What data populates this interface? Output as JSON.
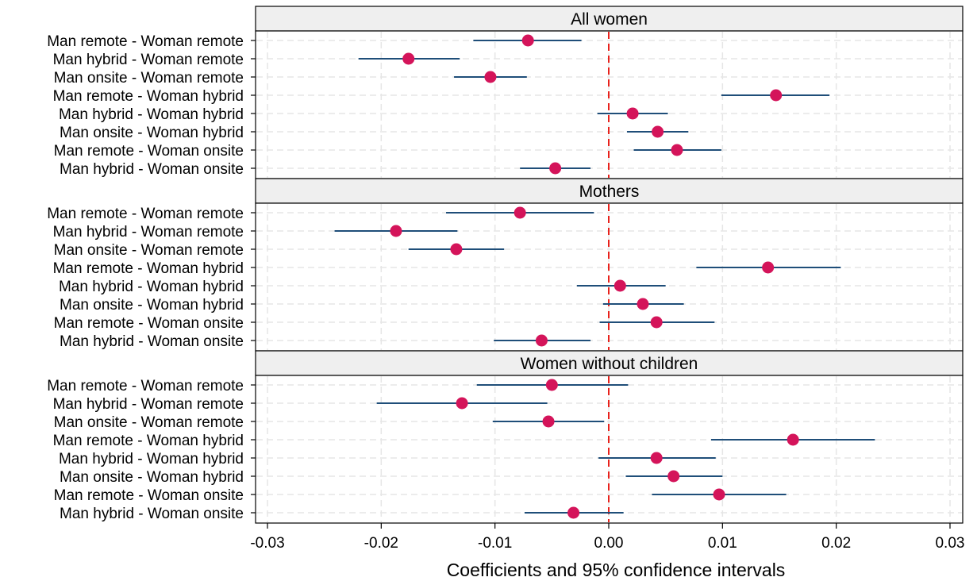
{
  "chart_data": {
    "type": "scatter",
    "subtype": "coefficient plot with 95% confidence intervals, faceted",
    "xlabel": "Coefficients and 95% confidence intervals",
    "xlim": [
      -0.031,
      0.031
    ],
    "xticks": [
      -0.03,
      -0.02,
      -0.01,
      0.0,
      0.01,
      0.02,
      0.03
    ],
    "xtick_labels": [
      "-0.03",
      "-0.02",
      "-0.01",
      "0.00",
      "0.01",
      "0.02",
      "0.03"
    ],
    "reference_line": {
      "x": 0,
      "style": "dashed",
      "color": "#e8221c"
    },
    "grid": true,
    "colors": {
      "point": "#d4145a",
      "ci_line": "#1f4e79",
      "strip_bg": "#efefef",
      "grid": "#e6e6e6"
    },
    "categories": [
      "Man remote - Woman remote",
      "Man hybrid - Woman remote",
      "Man onsite - Woman remote",
      "Man remote - Woman hybrid",
      "Man hybrid - Woman hybrid",
      "Man onsite - Woman hybrid",
      "Man remote - Woman onsite",
      "Man hybrid - Woman onsite"
    ],
    "panels": [
      {
        "title": "All women",
        "estimates": [
          -0.0071,
          -0.0176,
          -0.0104,
          0.0147,
          0.0021,
          0.0043,
          0.006,
          -0.0047
        ],
        "ci_low": [
          -0.0119,
          -0.022,
          -0.0136,
          0.0099,
          -0.001,
          0.0016,
          0.0022,
          -0.0078
        ],
        "ci_high": [
          -0.0024,
          -0.0131,
          -0.0072,
          0.0194,
          0.0052,
          0.007,
          0.0099,
          -0.0016
        ]
      },
      {
        "title": "Mothers",
        "estimates": [
          -0.0078,
          -0.0187,
          -0.0134,
          0.014,
          0.001,
          0.003,
          0.0042,
          -0.0059
        ],
        "ci_low": [
          -0.0143,
          -0.0241,
          -0.0176,
          0.0077,
          -0.0028,
          -0.0005,
          -0.0008,
          -0.0101
        ],
        "ci_high": [
          -0.0013,
          -0.0133,
          -0.0092,
          0.0204,
          0.005,
          0.0066,
          0.0093,
          -0.0016
        ]
      },
      {
        "title": "Women without children",
        "estimates": [
          -0.005,
          -0.0129,
          -0.0053,
          0.0162,
          0.0042,
          0.0057,
          0.0097,
          -0.0031
        ],
        "ci_low": [
          -0.0116,
          -0.0204,
          -0.0102,
          0.009,
          -0.0009,
          0.0015,
          0.0038,
          -0.0074
        ],
        "ci_high": [
          0.0017,
          -0.0054,
          -0.0004,
          0.0234,
          0.0094,
          0.01,
          0.0156,
          0.0013
        ]
      }
    ]
  }
}
